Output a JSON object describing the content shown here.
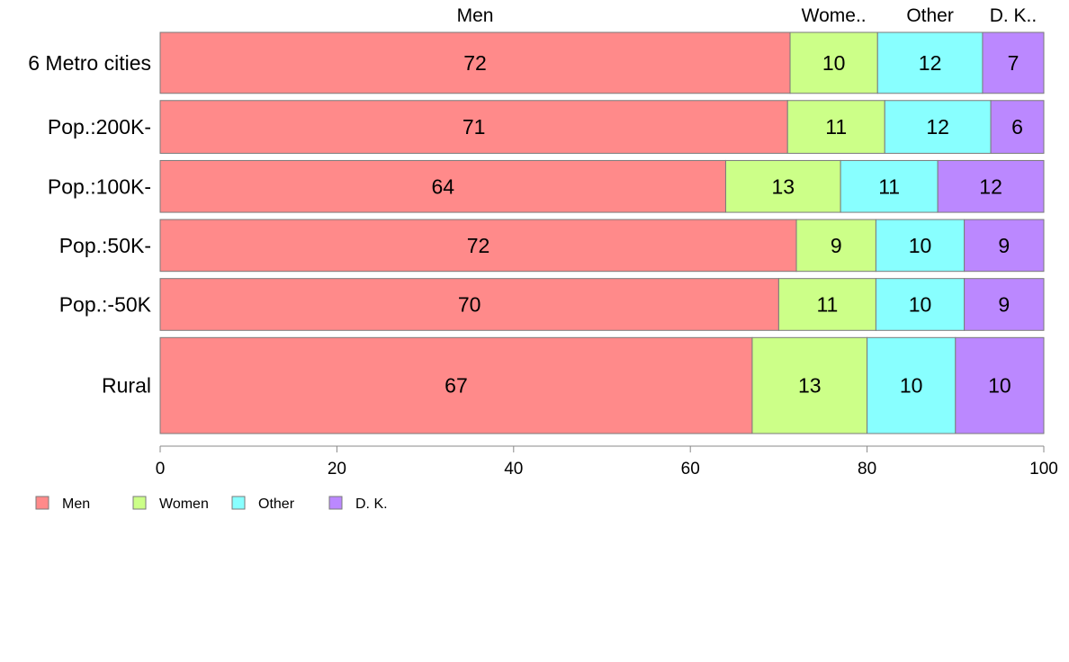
{
  "chart_data": {
    "type": "bar",
    "orientation": "horizontal",
    "stacked": true,
    "categories": [
      "6 Metro cities",
      "Pop.:200K-",
      "Pop.:100K-",
      "Pop.:50K-",
      "Pop.:-50K",
      "Rural"
    ],
    "series": [
      {
        "name": "Men",
        "top_label": "Men",
        "color": "#ff8a8a",
        "values": [
          72,
          71,
          64,
          72,
          70,
          67
        ]
      },
      {
        "name": "Women",
        "top_label": "Wome..",
        "color": "#ccff88",
        "values": [
          10,
          11,
          13,
          9,
          11,
          13
        ]
      },
      {
        "name": "Other",
        "top_label": "Other",
        "color": "#88ffff",
        "values": [
          12,
          12,
          11,
          10,
          10,
          10
        ]
      },
      {
        "name": "D. K.",
        "top_label": "D. K..",
        "color": "#bb88ff",
        "values": [
          7,
          6,
          12,
          9,
          9,
          10
        ]
      }
    ],
    "bar_weights": [
      1.27,
      1.1,
      1.08,
      1.08,
      1.08,
      2.0
    ],
    "xlim": [
      0,
      100
    ],
    "xticks": [
      "0",
      "20",
      "40",
      "60",
      "80",
      "100"
    ],
    "legend_position": "bottom-left",
    "grid": false
  }
}
